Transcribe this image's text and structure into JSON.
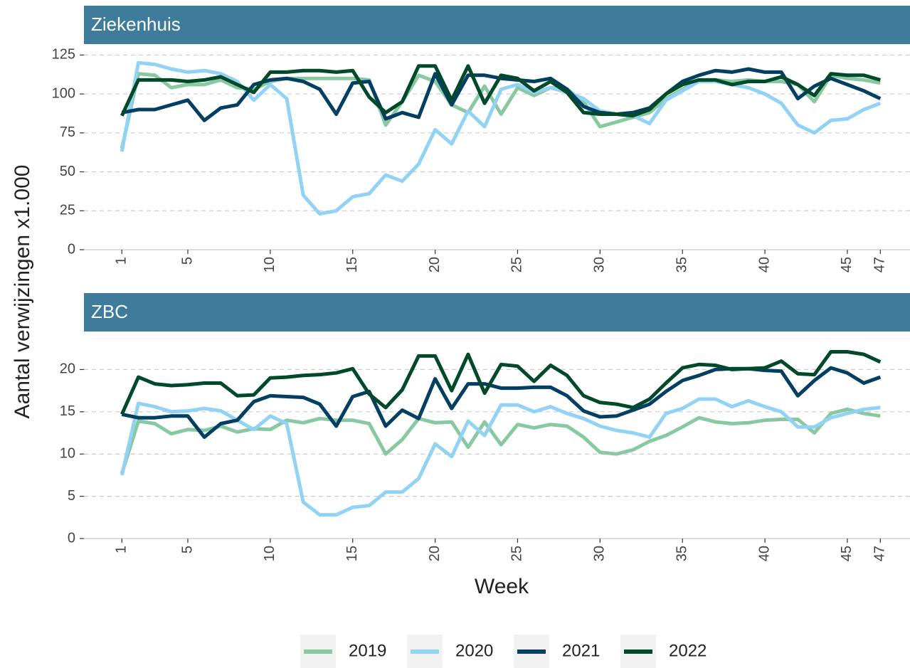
{
  "axis_labels": {
    "y": "Aantal verwijzingen x1.000",
    "x": "Week"
  },
  "legend": "bottom",
  "chart_data": [
    {
      "type": "line",
      "title": "Ziekenhuis",
      "x": [
        1,
        2,
        3,
        4,
        5,
        6,
        7,
        8,
        9,
        10,
        11,
        12,
        13,
        14,
        15,
        16,
        17,
        18,
        19,
        20,
        21,
        22,
        23,
        24,
        25,
        26,
        27,
        28,
        29,
        30,
        31,
        32,
        33,
        34,
        35,
        36,
        37,
        38,
        39,
        40,
        41,
        42,
        43,
        44,
        45,
        46,
        47
      ],
      "xlim": [
        -1.3,
        48.8
      ],
      "xticks": [
        1,
        5,
        10,
        15,
        20,
        25,
        30,
        35,
        40,
        45,
        47
      ],
      "ylim": [
        0,
        132
      ],
      "yticks": [
        0,
        25,
        50,
        75,
        100,
        125
      ],
      "grid": true,
      "series": [
        {
          "name": "2019",
          "color": "#88c9a1",
          "values": [
            65,
            113,
            112,
            104,
            106,
            106,
            109,
            104,
            103,
            108,
            110,
            110,
            110,
            110,
            110,
            109,
            80,
            95,
            112,
            108,
            93,
            88,
            105,
            87,
            104,
            99,
            104,
            103,
            95,
            79,
            82,
            85,
            88,
            97,
            103,
            109,
            109,
            108,
            109,
            108,
            108,
            106,
            95,
            112,
            110,
            109,
            107
          ]
        },
        {
          "name": "2020",
          "color": "#92d3f5",
          "values": [
            63,
            120,
            119,
            116,
            114,
            115,
            113,
            108,
            96,
            106,
            97,
            35,
            23,
            25,
            34,
            36,
            48,
            44,
            55,
            77,
            68,
            89,
            79,
            103,
            106,
            101,
            104,
            101,
            97,
            89,
            87,
            86,
            81,
            96,
            102,
            108,
            108,
            106,
            104,
            100,
            94,
            80,
            75,
            83,
            84,
            90,
            94
          ]
        },
        {
          "name": "2021",
          "color": "#023f62",
          "values": [
            88,
            90,
            90,
            93,
            96,
            83,
            91,
            93,
            106,
            109,
            110,
            108,
            103,
            87,
            107,
            108,
            84,
            88,
            85,
            113,
            93,
            112,
            112,
            110,
            109,
            108,
            110,
            103,
            92,
            88,
            87,
            88,
            91,
            100,
            108,
            112,
            115,
            114,
            116,
            114,
            114,
            97,
            105,
            110,
            106,
            102,
            97
          ]
        },
        {
          "name": "2022",
          "color": "#01492b",
          "values": [
            86,
            109,
            109,
            109,
            108,
            109,
            111,
            106,
            101,
            114,
            114,
            115,
            115,
            114,
            115,
            98,
            88,
            95,
            118,
            118,
            96,
            118,
            94,
            112,
            110,
            102,
            108,
            101,
            88,
            87,
            87,
            86,
            90,
            100,
            106,
            109,
            109,
            106,
            108,
            108,
            111,
            106,
            99,
            113,
            112,
            112,
            109
          ]
        }
      ]
    },
    {
      "type": "line",
      "title": "ZBC",
      "x": [
        1,
        2,
        3,
        4,
        5,
        6,
        7,
        8,
        9,
        10,
        11,
        12,
        13,
        14,
        15,
        16,
        17,
        18,
        19,
        20,
        21,
        22,
        23,
        24,
        25,
        26,
        27,
        28,
        29,
        30,
        31,
        32,
        33,
        34,
        35,
        36,
        37,
        38,
        39,
        40,
        41,
        42,
        43,
        44,
        45,
        46,
        47
      ],
      "xlim": [
        -1.3,
        48.8
      ],
      "xticks": [
        1,
        5,
        10,
        15,
        20,
        25,
        30,
        35,
        40,
        45,
        47
      ],
      "ylim": [
        0,
        24.5
      ],
      "yticks": [
        0,
        5,
        10,
        15,
        20
      ],
      "grid": true,
      "series": [
        {
          "name": "2019",
          "color": "#88c9a1",
          "values": [
            7.7,
            13.9,
            13.6,
            12.4,
            12.9,
            12.8,
            13.3,
            12.6,
            13.0,
            12.9,
            14.0,
            13.7,
            14.2,
            14.0,
            14.0,
            13.6,
            10.0,
            11.7,
            14.2,
            13.7,
            13.8,
            10.8,
            13.8,
            11.1,
            13.5,
            13.1,
            13.5,
            13.3,
            12.0,
            10.2,
            10.0,
            10.5,
            11.5,
            12.2,
            13.2,
            14.3,
            13.8,
            13.6,
            13.7,
            14.0,
            14.1,
            14.1,
            12.5,
            14.8,
            15.3,
            14.8,
            14.5
          ]
        },
        {
          "name": "2020",
          "color": "#92d3f5",
          "values": [
            7.5,
            16.0,
            15.6,
            15.0,
            15.1,
            15.4,
            15.1,
            14.0,
            12.9,
            14.5,
            13.6,
            4.3,
            2.8,
            2.8,
            3.7,
            3.9,
            5.5,
            5.5,
            7.1,
            11.2,
            9.7,
            13.9,
            12.2,
            15.8,
            15.8,
            15.0,
            15.6,
            14.8,
            14.2,
            13.3,
            12.8,
            12.5,
            12.0,
            14.8,
            15.4,
            16.5,
            16.5,
            15.6,
            16.3,
            15.6,
            15.0,
            13.2,
            13.2,
            14.3,
            14.8,
            15.3,
            15.5
          ]
        },
        {
          "name": "2021",
          "color": "#023f62",
          "values": [
            14.7,
            14.3,
            14.3,
            14.5,
            14.5,
            12.0,
            13.6,
            14.0,
            16.2,
            16.9,
            16.8,
            16.7,
            15.9,
            13.3,
            16.8,
            17.4,
            13.3,
            15.2,
            14.2,
            18.9,
            15.4,
            18.3,
            18.3,
            17.8,
            17.8,
            17.9,
            17.9,
            16.9,
            15.1,
            14.4,
            14.5,
            15.2,
            15.9,
            17.4,
            18.7,
            19.3,
            20.0,
            20.1,
            20.1,
            19.9,
            19.8,
            16.9,
            18.7,
            20.2,
            19.6,
            18.4,
            19.1
          ]
        },
        {
          "name": "2022",
          "color": "#01492b",
          "values": [
            14.7,
            19.1,
            18.3,
            18.1,
            18.2,
            18.4,
            18.4,
            16.9,
            17.0,
            19.0,
            19.1,
            19.3,
            19.4,
            19.6,
            20.1,
            17.1,
            15.5,
            17.6,
            21.6,
            21.6,
            17.5,
            21.8,
            17.2,
            20.6,
            20.4,
            18.6,
            20.5,
            19.3,
            16.9,
            16.1,
            15.9,
            15.5,
            16.5,
            18.4,
            20.2,
            20.6,
            20.5,
            20.0,
            20.1,
            20.2,
            21.0,
            19.5,
            19.4,
            22.1,
            22.1,
            21.8,
            20.9
          ]
        }
      ]
    }
  ]
}
